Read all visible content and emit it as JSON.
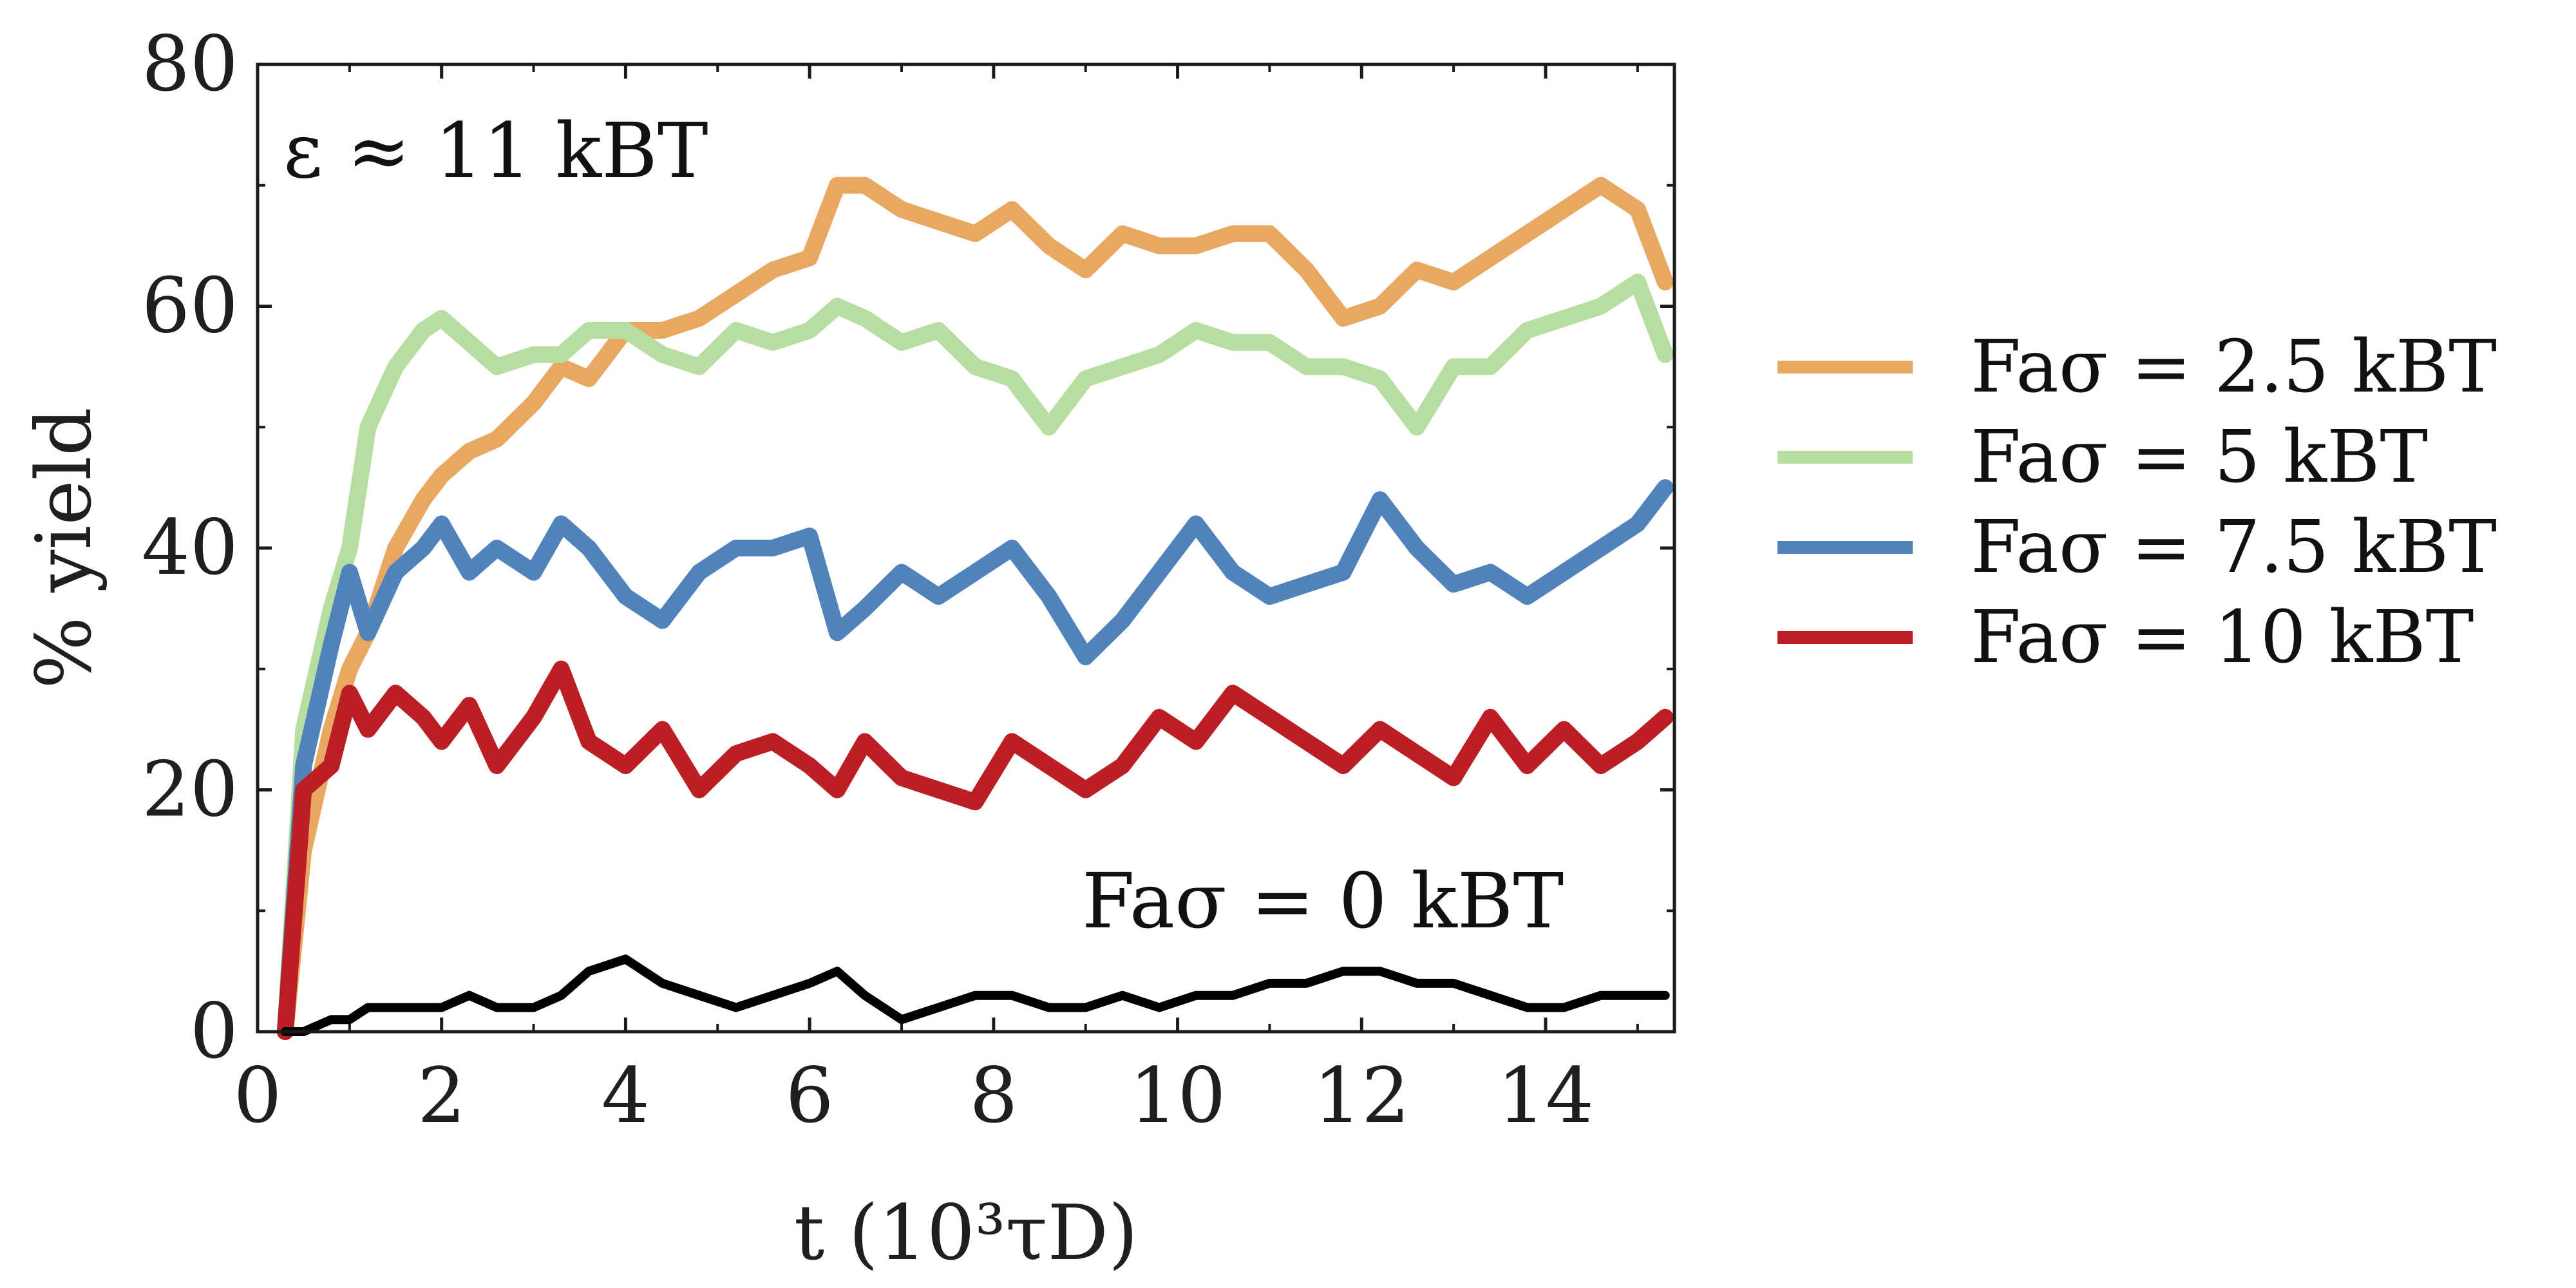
{
  "chart_data": {
    "type": "line",
    "title": "",
    "xlabel": "t (10³τD)",
    "ylabel": "% yield",
    "xlim": [
      0,
      15.4
    ],
    "ylim": [
      0,
      80
    ],
    "xticks": [
      "0",
      "2",
      "4",
      "6",
      "8",
      "10",
      "12",
      "14"
    ],
    "yticks": [
      "0",
      "20",
      "40",
      "60",
      "80"
    ],
    "annotation_energy": "ε ≈ 11 kBT",
    "annotation_zero": "Faσ = 0 kBT",
    "legend_position": "right",
    "grid": false,
    "series": [
      {
        "name": "Faσ = 2.5 kBT",
        "color": "#E9A862",
        "x": [
          0.3,
          0.5,
          0.8,
          1.0,
          1.2,
          1.5,
          1.8,
          2.0,
          2.3,
          2.6,
          3.0,
          3.3,
          3.6,
          4.0,
          4.4,
          4.8,
          5.2,
          5.6,
          6.0,
          6.3,
          6.6,
          7.0,
          7.4,
          7.8,
          8.2,
          8.6,
          9.0,
          9.4,
          9.8,
          10.2,
          10.6,
          11.0,
          11.4,
          11.8,
          12.2,
          12.6,
          13.0,
          13.4,
          13.8,
          14.2,
          14.6,
          15.0,
          15.3
        ],
        "values": [
          0,
          15,
          25,
          30,
          33,
          40,
          44,
          46,
          48,
          49,
          52,
          55,
          54,
          58,
          58,
          59,
          61,
          63,
          64,
          70,
          70,
          68,
          67,
          66,
          68,
          65,
          63,
          66,
          65,
          65,
          66,
          66,
          63,
          59,
          60,
          63,
          62,
          64,
          66,
          68,
          70,
          68,
          62
        ]
      },
      {
        "name": "Faσ = 5 kBT",
        "color": "#B7DDA0",
        "x": [
          0.3,
          0.5,
          0.8,
          1.0,
          1.2,
          1.5,
          1.8,
          2.0,
          2.3,
          2.6,
          3.0,
          3.3,
          3.6,
          4.0,
          4.4,
          4.8,
          5.2,
          5.6,
          6.0,
          6.3,
          6.6,
          7.0,
          7.4,
          7.8,
          8.2,
          8.6,
          9.0,
          9.4,
          9.8,
          10.2,
          10.6,
          11.0,
          11.4,
          11.8,
          12.2,
          12.6,
          13.0,
          13.4,
          13.8,
          14.2,
          14.6,
          15.0,
          15.3
        ],
        "values": [
          0,
          25,
          35,
          40,
          50,
          55,
          58,
          59,
          57,
          55,
          56,
          56,
          58,
          58,
          56,
          55,
          58,
          57,
          58,
          60,
          59,
          57,
          58,
          55,
          54,
          50,
          54,
          55,
          56,
          58,
          57,
          57,
          55,
          55,
          54,
          50,
          55,
          55,
          58,
          59,
          60,
          62,
          56
        ]
      },
      {
        "name": "Faσ = 7.5 kBT",
        "color": "#5083BC",
        "x": [
          0.3,
          0.5,
          0.8,
          1.0,
          1.2,
          1.5,
          1.8,
          2.0,
          2.3,
          2.6,
          3.0,
          3.3,
          3.6,
          4.0,
          4.4,
          4.8,
          5.2,
          5.6,
          6.0,
          6.3,
          6.6,
          7.0,
          7.4,
          7.8,
          8.2,
          8.6,
          9.0,
          9.4,
          9.8,
          10.2,
          10.6,
          11.0,
          11.4,
          11.8,
          12.2,
          12.6,
          13.0,
          13.4,
          13.8,
          14.2,
          14.6,
          15.0,
          15.3
        ],
        "values": [
          0,
          22,
          32,
          38,
          33,
          38,
          40,
          42,
          38,
          40,
          38,
          42,
          40,
          36,
          34,
          38,
          40,
          40,
          41,
          33,
          35,
          38,
          36,
          38,
          40,
          36,
          31,
          34,
          38,
          42,
          38,
          36,
          37,
          38,
          44,
          40,
          37,
          38,
          36,
          38,
          40,
          42,
          45
        ]
      },
      {
        "name": "Faσ = 10 kBT",
        "color": "#BB1F24",
        "x": [
          0.3,
          0.5,
          0.8,
          1.0,
          1.2,
          1.5,
          1.8,
          2.0,
          2.3,
          2.6,
          3.0,
          3.3,
          3.6,
          4.0,
          4.4,
          4.8,
          5.2,
          5.6,
          6.0,
          6.3,
          6.6,
          7.0,
          7.4,
          7.8,
          8.2,
          8.6,
          9.0,
          9.4,
          9.8,
          10.2,
          10.6,
          11.0,
          11.4,
          11.8,
          12.2,
          12.6,
          13.0,
          13.4,
          13.8,
          14.2,
          14.6,
          15.0,
          15.3
        ],
        "values": [
          0,
          20,
          22,
          28,
          25,
          28,
          26,
          24,
          27,
          22,
          26,
          30,
          24,
          22,
          25,
          20,
          23,
          24,
          22,
          20,
          24,
          21,
          20,
          19,
          24,
          22,
          20,
          22,
          26,
          24,
          28,
          26,
          24,
          22,
          25,
          23,
          21,
          26,
          22,
          25,
          22,
          24,
          26
        ]
      },
      {
        "name": "Faσ = 0 kBT",
        "color": "#000000",
        "x": [
          0.3,
          0.5,
          0.8,
          1.0,
          1.2,
          1.5,
          1.8,
          2.0,
          2.3,
          2.6,
          3.0,
          3.3,
          3.6,
          4.0,
          4.4,
          4.8,
          5.2,
          5.6,
          6.0,
          6.3,
          6.6,
          7.0,
          7.4,
          7.8,
          8.2,
          8.6,
          9.0,
          9.4,
          9.8,
          10.2,
          10.6,
          11.0,
          11.4,
          11.8,
          12.2,
          12.6,
          13.0,
          13.4,
          13.8,
          14.2,
          14.6,
          15.0,
          15.3
        ],
        "values": [
          0,
          0,
          1,
          1,
          2,
          2,
          2,
          2,
          3,
          2,
          2,
          3,
          5,
          6,
          4,
          3,
          2,
          3,
          4,
          5,
          3,
          1,
          2,
          3,
          3,
          2,
          2,
          3,
          2,
          3,
          3,
          4,
          4,
          5,
          5,
          4,
          4,
          3,
          2,
          2,
          3,
          3,
          3
        ]
      }
    ],
    "legend": [
      "Faσ = 2.5 kBT",
      "Faσ = 5 kBT",
      "Faσ = 7.5 kBT",
      "Faσ = 10 kBT"
    ]
  }
}
